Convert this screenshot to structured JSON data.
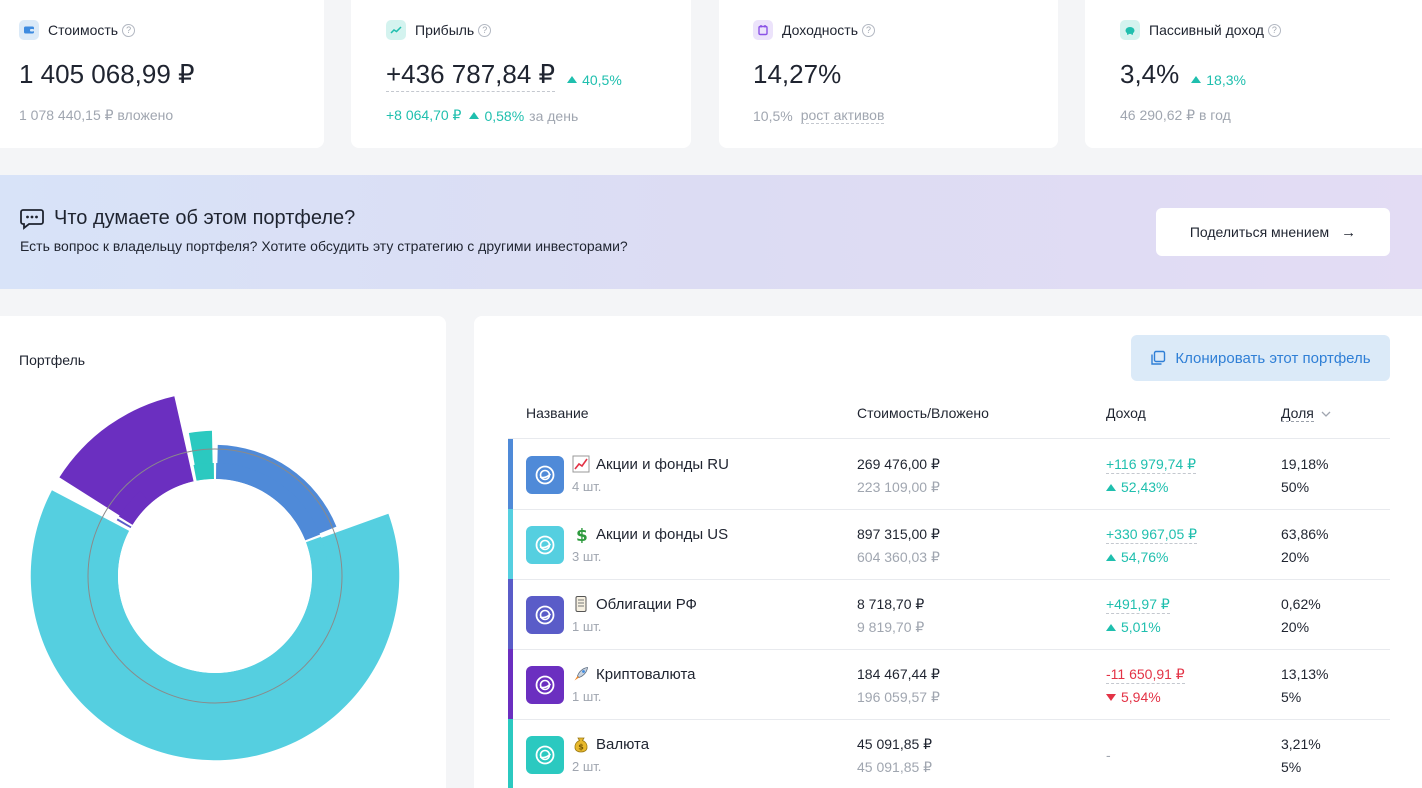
{
  "stats": [
    {
      "label": "Стоимость",
      "value": "1 405 068,99 ₽",
      "sub_text": "1 078 440,15 ₽ вложено",
      "icon": "wallet-icon",
      "icon_bg": "#dbeaf8",
      "icon_color": "#3d8be0"
    },
    {
      "label": "Прибыль",
      "value": "+436 787,84 ₽",
      "change": "40,5%",
      "sub_value": "+8 064,70 ₽",
      "sub_change": "0,58%",
      "sub_suffix": "за день",
      "icon": "chart-line-icon",
      "icon_bg": "#d4f3ef",
      "icon_color": "#1fbfae"
    },
    {
      "label": "Доходность",
      "value": "14,27%",
      "sub_value": "10,5%",
      "sub_link": "рост активов",
      "icon": "calendar-icon",
      "icon_bg": "#ece3fb",
      "icon_color": "#8a52e6"
    },
    {
      "label": "Пассивный доход",
      "value": "3,4%",
      "change": "18,3%",
      "sub_text": "46 290,62 ₽ в год",
      "icon": "piggy-bank-icon",
      "icon_bg": "#d4f3ef",
      "icon_color": "#1fbfae"
    }
  ],
  "banner": {
    "title": "Что думаете об этом портфеле?",
    "subtitle": "Есть вопрос к владельцу портфеля? Хотите обсудить эту стратегию с другими инвесторами?",
    "button": "Поделиться мнением",
    "button_arrow": "→"
  },
  "portfolio_chart": {
    "title": "Портфель",
    "segments": [
      {
        "name": "Акции и фонды RU",
        "share": 19.18,
        "target": 50,
        "color": "#4f8ad8"
      },
      {
        "name": "Акции и фонды US",
        "share": 63.86,
        "target": 20,
        "color": "#55cfe0"
      },
      {
        "name": "Облигации РФ",
        "share": 0.62,
        "target": 20,
        "color": "#5a5cc8"
      },
      {
        "name": "Криптовалюта",
        "share": 13.13,
        "target": 5,
        "color": "#6b2fc0"
      },
      {
        "name": "Валюта",
        "share": 3.21,
        "target": 5,
        "color": "#2bc9c0"
      }
    ]
  },
  "table": {
    "clone_button": "Клонировать этот портфель",
    "headers": {
      "name": "Название",
      "cost": "Стоимость/Вложено",
      "income": "Доход",
      "share": "Доля",
      "sort_icon": "chevron-down-icon"
    },
    "rows": [
      {
        "emoji": "chart-up-emoji",
        "name": "Акции и фонды RU",
        "count": "4 шт.",
        "cost": "269 476,00 ₽",
        "invested": "223 109,00 ₽",
        "income": "+116 979,74 ₽",
        "income_pct": "52,43%",
        "direction": "up",
        "share": "19,18%",
        "target": "50%",
        "color": "#4f8ad8"
      },
      {
        "emoji": "dollar-emoji",
        "name": "Акции и фонды US",
        "count": "3 шт.",
        "cost": "897 315,00 ₽",
        "invested": "604 360,03 ₽",
        "income": "+330 967,05 ₽",
        "income_pct": "54,76%",
        "direction": "up",
        "share": "63,86%",
        "target": "20%",
        "color": "#55cfe0"
      },
      {
        "emoji": "scroll-emoji",
        "name": "Облигации РФ",
        "count": "1 шт.",
        "cost": "8 718,70 ₽",
        "invested": "9 819,70 ₽",
        "income": "+491,97 ₽",
        "income_pct": "5,01%",
        "direction": "up",
        "share": "0,62%",
        "target": "20%",
        "color": "#5a5cc8"
      },
      {
        "emoji": "rocket-emoji",
        "name": "Криптовалюта",
        "count": "1 шт.",
        "cost": "184 467,44 ₽",
        "invested": "196 059,57 ₽",
        "income": "-11 650,91 ₽",
        "income_pct": "5,94%",
        "direction": "down",
        "share": "13,13%",
        "target": "5%",
        "color": "#6b2fc0"
      },
      {
        "emoji": "money-bag-emoji",
        "name": "Валюта",
        "count": "2 шт.",
        "cost": "45 091,85 ₽",
        "invested": "45 091,85 ₽",
        "income": "-",
        "income_pct": "",
        "direction": "none",
        "share": "3,21%",
        "target": "5%",
        "color": "#2bc9c0"
      }
    ]
  }
}
